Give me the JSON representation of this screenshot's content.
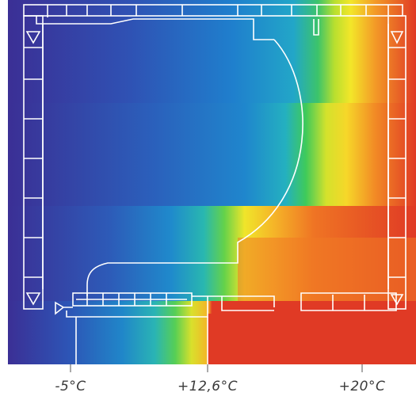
{
  "legend": {
    "items": [
      {
        "label": "-5°C"
      },
      {
        "label": "+12,6°C"
      },
      {
        "label": "+20°C"
      }
    ]
  },
  "colors": {
    "cold": "#3c2f94",
    "cool": "#1f76c6",
    "mid": "#22a4c9",
    "green": "#37c25a",
    "yellow": "#f3e629",
    "orange": "#f08a24",
    "warm": "#e03a25",
    "outline": "#ffffff"
  }
}
